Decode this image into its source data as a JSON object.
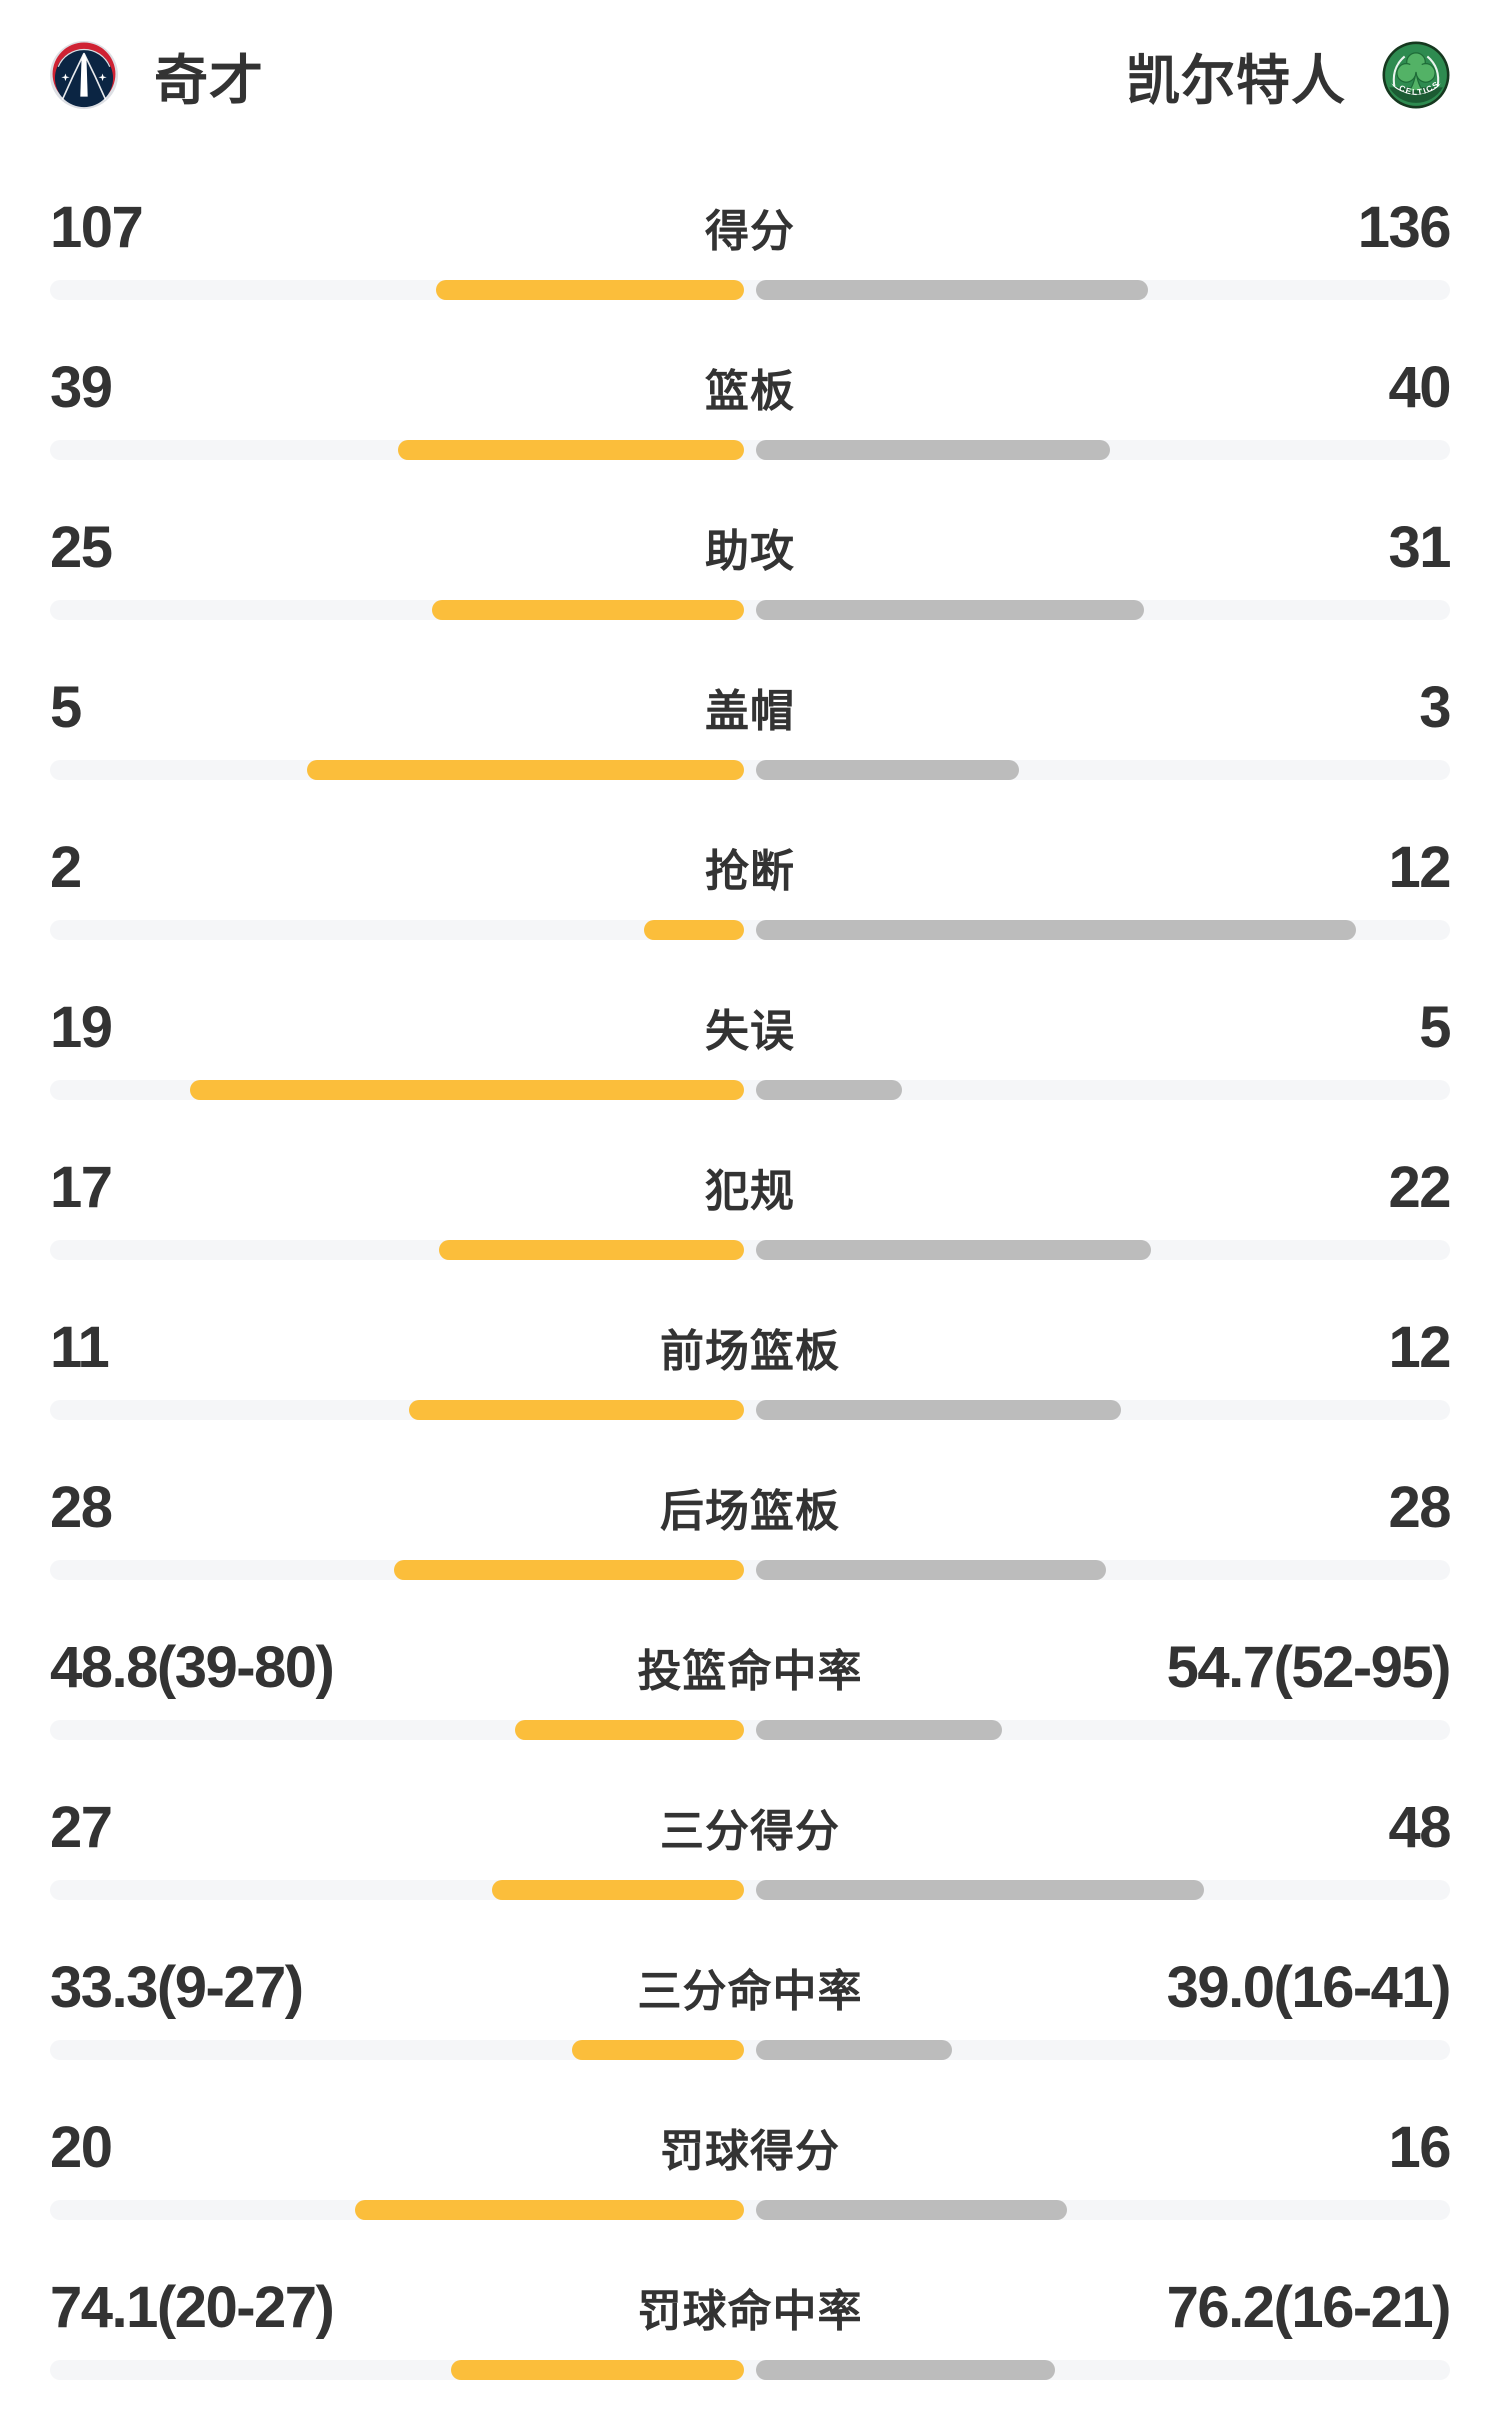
{
  "header": {
    "home": {
      "name": "奇才",
      "logo_icon": "wizards-logo-icon"
    },
    "away": {
      "name": "凯尔特人",
      "logo_icon": "celtics-logo-icon",
      "logo_text": "CELTICS"
    }
  },
  "colors": {
    "home_bar": "#FBBE3B",
    "away_bar": "#BCBCBC",
    "track": "#F5F6F8",
    "text": "#333333",
    "page_bg": "#FFFFFF"
  },
  "chart_data": {
    "type": "bar",
    "orientation": "horizontal-paired-comparison",
    "series": [
      "奇才",
      "凯尔特人"
    ],
    "legend_position": "top",
    "grid": false,
    "rows": [
      {
        "label": "得分",
        "home": "107",
        "away": "136",
        "home_num": 107,
        "away_num": 136,
        "home_bar_pct": 44.0,
        "away_bar_pct": 56.0
      },
      {
        "label": "篮板",
        "home": "39",
        "away": "40",
        "home_num": 39,
        "away_num": 40,
        "home_bar_pct": 49.4,
        "away_bar_pct": 50.6
      },
      {
        "label": "助攻",
        "home": "25",
        "away": "31",
        "home_num": 25,
        "away_num": 31,
        "home_bar_pct": 44.6,
        "away_bar_pct": 55.4
      },
      {
        "label": "盖帽",
        "home": "5",
        "away": "3",
        "home_num": 5,
        "away_num": 3,
        "home_bar_pct": 62.5,
        "away_bar_pct": 37.5
      },
      {
        "label": "抢断",
        "home": "2",
        "away": "12",
        "home_num": 2,
        "away_num": 12,
        "home_bar_pct": 14.3,
        "away_bar_pct": 85.7
      },
      {
        "label": "失误",
        "home": "19",
        "away": "5",
        "home_num": 19,
        "away_num": 5,
        "home_bar_pct": 79.2,
        "away_bar_pct": 20.8
      },
      {
        "label": "犯规",
        "home": "17",
        "away": "22",
        "home_num": 17,
        "away_num": 22,
        "home_bar_pct": 43.6,
        "away_bar_pct": 56.4
      },
      {
        "label": "前场篮板",
        "home": "11",
        "away": "12",
        "home_num": 11,
        "away_num": 12,
        "home_bar_pct": 47.8,
        "away_bar_pct": 52.2
      },
      {
        "label": "后场篮板",
        "home": "28",
        "away": "28",
        "home_num": 28,
        "away_num": 28,
        "home_bar_pct": 50.0,
        "away_bar_pct": 50.0
      },
      {
        "label": "投篮命中率",
        "home": "48.8(39-80)",
        "away": "54.7(52-95)",
        "home_num": 48.8,
        "away_num": 54.7,
        "home_bar_pct": 32.7,
        "away_bar_pct": 35.1
      },
      {
        "label": "三分得分",
        "home": "27",
        "away": "48",
        "home_num": 27,
        "away_num": 48,
        "home_bar_pct": 36.0,
        "away_bar_pct": 64.0
      },
      {
        "label": "三分命中率",
        "home": "33.3(9-27)",
        "away": "39.0(16-41)",
        "home_num": 33.3,
        "away_num": 39.0,
        "home_bar_pct": 24.6,
        "away_bar_pct": 28.0
      },
      {
        "label": "罚球得分",
        "home": "20",
        "away": "16",
        "home_num": 20,
        "away_num": 16,
        "home_bar_pct": 55.6,
        "away_bar_pct": 44.4
      },
      {
        "label": "罚球命中率",
        "home": "74.1(20-27)",
        "away": "76.2(16-21)",
        "home_num": 74.1,
        "away_num": 76.2,
        "home_bar_pct": 41.9,
        "away_bar_pct": 42.7
      }
    ]
  }
}
